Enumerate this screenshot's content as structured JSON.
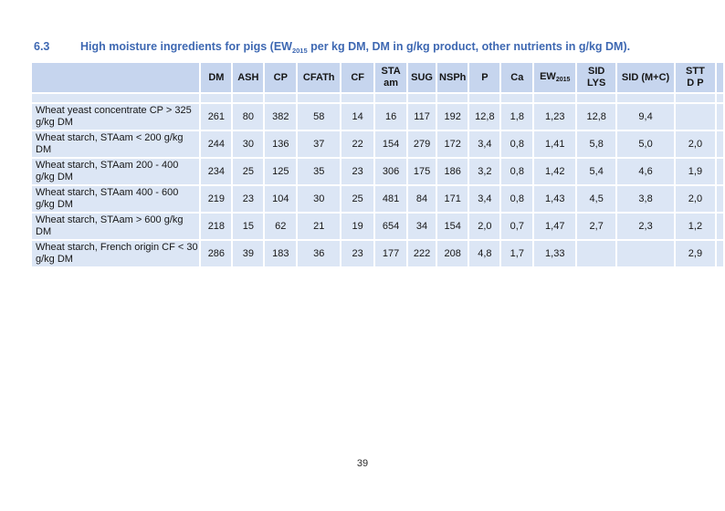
{
  "document": {
    "section_number": "6.3",
    "title": {
      "prefix": "High moisture ingredients for pigs (EW",
      "subscript": "2015",
      "suffix": " per kg DM, DM in g/kg product, other nutrients in g/kg DM)."
    },
    "page_number": "39"
  },
  "colors": {
    "title_blue": "#3e68b2",
    "header_bg": "#c6d5ee",
    "row_bg": "#dce6f5",
    "cell_border": "#ffffff"
  },
  "table": {
    "has_spacer_row": true,
    "columns": [
      {
        "id": "ingredient",
        "lines": [
          ""
        ]
      },
      {
        "id": "dm",
        "lines": [
          "DM"
        ]
      },
      {
        "id": "ash",
        "lines": [
          "ASH"
        ]
      },
      {
        "id": "cp",
        "lines": [
          "CP"
        ]
      },
      {
        "id": "cfath",
        "lines": [
          "CFATh"
        ]
      },
      {
        "id": "cf",
        "lines": [
          "CF"
        ]
      },
      {
        "id": "sta-am",
        "lines": [
          "STA",
          "am"
        ]
      },
      {
        "id": "sug",
        "lines": [
          "SUG"
        ]
      },
      {
        "id": "nsph",
        "lines": [
          "NSPh"
        ]
      },
      {
        "id": "p",
        "lines": [
          "P"
        ]
      },
      {
        "id": "ca",
        "lines": [
          "Ca"
        ]
      },
      {
        "id": "ew2015",
        "lines": [
          "EW"
        ],
        "sub": "2015"
      },
      {
        "id": "sid-lys",
        "lines": [
          "SID",
          "LYS"
        ]
      },
      {
        "id": "sid-mc",
        "lines": [
          "SID (M+C)"
        ]
      },
      {
        "id": "stt-dp",
        "lines": [
          "STT",
          "D P"
        ]
      },
      {
        "id": "blank-end",
        "lines": [
          ""
        ]
      }
    ],
    "rows": [
      {
        "label": "Wheat yeast concentrate CP > 325 g/kg DM",
        "values": [
          "261",
          "80",
          "382",
          "58",
          "14",
          "16",
          "117",
          "192",
          "12,8",
          "1,8",
          "1,23",
          "12,8",
          "9,4",
          "",
          ""
        ]
      },
      {
        "label": "Wheat starch, STAam < 200 g/kg DM",
        "values": [
          "244",
          "30",
          "136",
          "37",
          "22",
          "154",
          "279",
          "172",
          "3,4",
          "0,8",
          "1,41",
          "5,8",
          "5,0",
          "2,0",
          ""
        ]
      },
      {
        "label": "Wheat starch, STAam 200 - 400 g/kg DM",
        "values": [
          "234",
          "25",
          "125",
          "35",
          "23",
          "306",
          "175",
          "186",
          "3,2",
          "0,8",
          "1,42",
          "5,4",
          "4,6",
          "1,9",
          ""
        ]
      },
      {
        "label": "Wheat starch, STAam 400 - 600 g/kg DM",
        "values": [
          "219",
          "23",
          "104",
          "30",
          "25",
          "481",
          "84",
          "171",
          "3,4",
          "0,8",
          "1,43",
          "4,5",
          "3,8",
          "2,0",
          ""
        ]
      },
      {
        "label": "Wheat starch, STAam > 600 g/kg DM",
        "values": [
          "218",
          "15",
          "62",
          "21",
          "19",
          "654",
          "34",
          "154",
          "2,0",
          "0,7",
          "1,47",
          "2,7",
          "2,3",
          "1,2",
          ""
        ]
      },
      {
        "label": "Wheat starch, French origin CF < 30 g/kg DM",
        "values": [
          "286",
          "39",
          "183",
          "36",
          "23",
          "177",
          "222",
          "208",
          "4,8",
          "1,7",
          "1,33",
          "",
          "",
          "2,9",
          ""
        ]
      }
    ]
  }
}
